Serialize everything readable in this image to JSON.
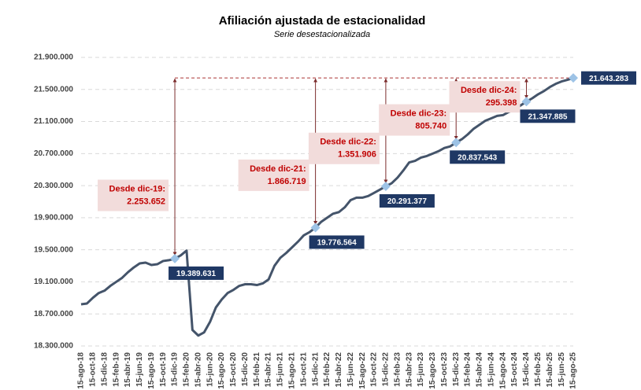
{
  "chart_data": {
    "type": "line",
    "title": "Afiliación ajustada de estacionalidad",
    "subtitle": "Serie desestacionalizada",
    "categories": [
      "15-ago-18",
      null,
      "15-oct-18",
      null,
      "15-dic-18",
      null,
      "15-feb-19",
      null,
      "15-abr-19",
      null,
      "15-jun-19",
      null,
      "15-ago-19",
      null,
      "15-oct-19",
      null,
      "15-dic-19",
      null,
      "15-feb-20",
      null,
      "15-abr-20",
      null,
      "15-jun-20",
      null,
      "15-ago-20",
      null,
      "15-oct-20",
      null,
      "15-dic-20",
      null,
      "15-feb-21",
      null,
      "15-abr-21",
      null,
      "15-jun-21",
      null,
      "15-ago-21",
      null,
      "15-oct-21",
      null,
      "15-dic-21",
      null,
      "15-feb-22",
      null,
      "15-abr-22",
      null,
      "15-jun-22",
      null,
      "15-ago-22",
      null,
      "15-oct-22",
      null,
      "15-dic-22",
      null,
      "15-feb-23",
      null,
      "15-abr-23",
      null,
      "15-jun-23",
      null,
      "15-ago-23",
      null,
      "15-oct-23",
      null,
      "15-dic-23",
      null,
      "15-feb-24",
      null,
      "15-abr-24",
      null,
      "15-jun-24",
      null,
      "15-ago-24",
      null,
      "15-oct-24",
      null,
      "15-dic-24",
      null,
      "15-feb-25",
      null,
      "15-abr-25",
      null,
      "15-jun-25",
      null,
      "15-ago-25"
    ],
    "values": [
      18820000,
      18830000,
      18900000,
      18960000,
      18990000,
      19050000,
      19100000,
      19150000,
      19220000,
      19280000,
      19330000,
      19340000,
      19310000,
      19320000,
      19360000,
      19370000,
      19389631,
      19430000,
      19490000,
      18500000,
      18430000,
      18470000,
      18600000,
      18780000,
      18880000,
      18960000,
      19000000,
      19050000,
      19070000,
      19070000,
      19060000,
      19080000,
      19130000,
      19300000,
      19400000,
      19460000,
      19530000,
      19600000,
      19680000,
      19720000,
      19776564,
      19850000,
      19900000,
      19950000,
      19970000,
      20030000,
      20120000,
      20150000,
      20150000,
      20170000,
      20210000,
      20250000,
      20291377,
      20330000,
      20400000,
      20490000,
      20590000,
      20610000,
      20650000,
      20670000,
      20700000,
      20730000,
      20770000,
      20790000,
      20837543,
      20880000,
      20940000,
      21010000,
      21060000,
      21110000,
      21140000,
      21170000,
      21180000,
      21220000,
      21250000,
      21300000,
      21347885,
      21390000,
      21440000,
      21480000,
      21530000,
      21570000,
      21600000,
      21620000,
      21643283
    ],
    "value_labels": [
      null,
      null,
      null,
      null,
      null,
      null,
      null,
      null,
      null,
      null,
      null,
      null,
      null,
      null,
      null,
      null,
      "19.389.631",
      null,
      null,
      null,
      null,
      null,
      null,
      null,
      null,
      null,
      null,
      null,
      null,
      null,
      null,
      null,
      null,
      null,
      null,
      null,
      null,
      null,
      null,
      null,
      "19.776.564",
      null,
      null,
      null,
      null,
      null,
      null,
      null,
      null,
      null,
      null,
      null,
      "20.291.377",
      null,
      null,
      null,
      null,
      null,
      null,
      null,
      null,
      null,
      null,
      null,
      "20.837.543",
      null,
      null,
      null,
      null,
      null,
      null,
      null,
      null,
      null,
      null,
      null,
      "21.347.885",
      null,
      null,
      null,
      null,
      null,
      null,
      null,
      "21.643.283"
    ],
    "color": "#44546a",
    "marker_color": "#9dc3e6",
    "ylim": [
      18300000,
      21900000
    ],
    "yticks": [
      {
        "value": 18300000,
        "label": "18.300.000"
      },
      {
        "value": 18700000,
        "label": "18.700.000"
      },
      {
        "value": 19100000,
        "label": "19.100.000"
      },
      {
        "value": 19500000,
        "label": "19.500.000"
      },
      {
        "value": 19900000,
        "label": "19.900.000"
      },
      {
        "value": 20300000,
        "label": "20.300.000"
      },
      {
        "value": 20700000,
        "label": "20.700.000"
      },
      {
        "value": 21100000,
        "label": "21.100.000"
      },
      {
        "value": 21500000,
        "label": "21.500.000"
      },
      {
        "value": 21900000,
        "label": "21.900.000"
      }
    ],
    "grid": true,
    "annotations": [
      {
        "title": "Desde dic-19:",
        "value": 2253652,
        "label": "2.253.652"
      },
      {
        "title": "Desde dic-21:",
        "value": 1866719,
        "label": "1.866.719"
      },
      {
        "title": "Desde dic-22:",
        "value": 1351906,
        "label": "1.351.906"
      },
      {
        "title": "Desde dic-23:",
        "value": 805740,
        "label": "805.740"
      },
      {
        "title": "Desde dic-24:",
        "value": 295398,
        "label": "295.398"
      }
    ]
  }
}
